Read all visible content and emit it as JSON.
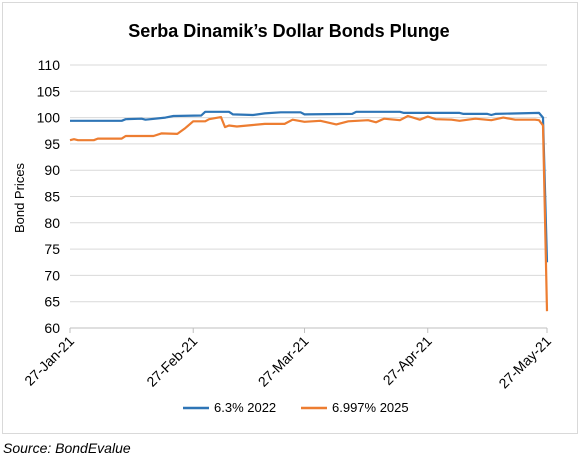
{
  "chart_data": {
    "type": "line",
    "title": "Serba Dinamik’s Dollar Bonds Plunge",
    "xlabel": "",
    "ylabel": "Bond Prices",
    "ylim": [
      60,
      110
    ],
    "yticks": [
      "60",
      "65",
      "70",
      "75",
      "80",
      "85",
      "90",
      "95",
      "100",
      "105",
      "110"
    ],
    "xlim": [
      "2021-01-27",
      "2021-05-27"
    ],
    "xticks": [
      {
        "date": "2021-01-27",
        "label": "27-Jan-21"
      },
      {
        "date": "2021-02-27",
        "label": "27-Feb-21"
      },
      {
        "date": "2021-03-27",
        "label": "27-Mar-21"
      },
      {
        "date": "2021-04-27",
        "label": "27-Apr-21"
      },
      {
        "date": "2021-05-27",
        "label": "27-May-21"
      }
    ],
    "grid": true,
    "legend_position": "bottom",
    "series": [
      {
        "name": "6.3% 2022",
        "color": "#2e75b6",
        "points": [
          [
            "2021-01-27",
            99.4
          ],
          [
            "2021-02-09",
            99.4
          ],
          [
            "2021-02-10",
            99.7
          ],
          [
            "2021-02-14",
            99.8
          ],
          [
            "2021-02-15",
            99.6
          ],
          [
            "2021-02-20",
            100.0
          ],
          [
            "2021-02-22",
            100.3
          ],
          [
            "2021-03-01",
            100.4
          ],
          [
            "2021-03-02",
            101.1
          ],
          [
            "2021-03-08",
            101.1
          ],
          [
            "2021-03-09",
            100.6
          ],
          [
            "2021-03-14",
            100.5
          ],
          [
            "2021-03-17",
            100.8
          ],
          [
            "2021-03-21",
            101.0
          ],
          [
            "2021-03-26",
            101.0
          ],
          [
            "2021-03-27",
            100.6
          ],
          [
            "2021-04-08",
            100.7
          ],
          [
            "2021-04-09",
            101.1
          ],
          [
            "2021-04-20",
            101.1
          ],
          [
            "2021-04-21",
            100.9
          ],
          [
            "2021-05-05",
            100.9
          ],
          [
            "2021-05-06",
            100.7
          ],
          [
            "2021-05-12",
            100.7
          ],
          [
            "2021-05-13",
            100.5
          ],
          [
            "2021-05-14",
            100.7
          ],
          [
            "2021-05-25",
            100.9
          ],
          [
            "2021-05-26",
            100.0
          ],
          [
            "2021-05-27",
            72.5
          ]
        ]
      },
      {
        "name": "6.997% 2025",
        "color": "#ed7d31",
        "points": [
          [
            "2021-01-27",
            95.7
          ],
          [
            "2021-01-28",
            95.9
          ],
          [
            "2021-01-29",
            95.7
          ],
          [
            "2021-02-02",
            95.7
          ],
          [
            "2021-02-03",
            96.0
          ],
          [
            "2021-02-09",
            96.0
          ],
          [
            "2021-02-10",
            96.5
          ],
          [
            "2021-02-17",
            96.5
          ],
          [
            "2021-02-19",
            97.0
          ],
          [
            "2021-02-23",
            96.9
          ],
          [
            "2021-02-25",
            98.0
          ],
          [
            "2021-02-27",
            99.3
          ],
          [
            "2021-03-02",
            99.3
          ],
          [
            "2021-03-03",
            99.7
          ],
          [
            "2021-03-06",
            100.1
          ],
          [
            "2021-03-07",
            98.2
          ],
          [
            "2021-03-08",
            98.5
          ],
          [
            "2021-03-10",
            98.3
          ],
          [
            "2021-03-14",
            98.6
          ],
          [
            "2021-03-17",
            98.8
          ],
          [
            "2021-03-22",
            98.8
          ],
          [
            "2021-03-24",
            99.6
          ],
          [
            "2021-03-27",
            99.2
          ],
          [
            "2021-03-31",
            99.4
          ],
          [
            "2021-04-04",
            98.7
          ],
          [
            "2021-04-07",
            99.3
          ],
          [
            "2021-04-12",
            99.5
          ],
          [
            "2021-04-14",
            99.1
          ],
          [
            "2021-04-16",
            99.8
          ],
          [
            "2021-04-20",
            99.5
          ],
          [
            "2021-04-22",
            100.3
          ],
          [
            "2021-04-25",
            99.6
          ],
          [
            "2021-04-27",
            100.2
          ],
          [
            "2021-04-29",
            99.7
          ],
          [
            "2021-05-03",
            99.6
          ],
          [
            "2021-05-05",
            99.4
          ],
          [
            "2021-05-09",
            99.8
          ],
          [
            "2021-05-13",
            99.5
          ],
          [
            "2021-05-16",
            100.0
          ],
          [
            "2021-05-19",
            99.6
          ],
          [
            "2021-05-24",
            99.6
          ],
          [
            "2021-05-25",
            99.5
          ],
          [
            "2021-05-26",
            98.5
          ],
          [
            "2021-05-27",
            63.2
          ]
        ]
      }
    ]
  },
  "source": "Source: BondEvalue"
}
